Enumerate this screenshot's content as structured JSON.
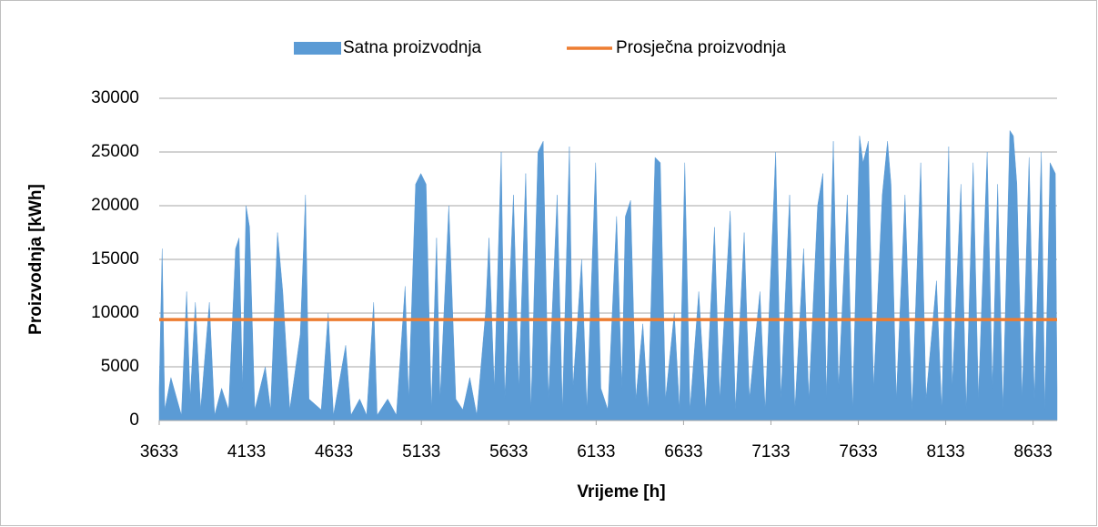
{
  "chart_data": {
    "type": "area",
    "xlabel": "Vrijeme [h]",
    "ylabel": "Proizvodnja [kWh]",
    "xlim": [
      3633,
      8770
    ],
    "ylim": [
      0,
      30000
    ],
    "xticks": [
      3633,
      4133,
      4633,
      5133,
      5633,
      6133,
      6633,
      7133,
      7633,
      8133,
      8633
    ],
    "yticks": [
      0,
      5000,
      10000,
      15000,
      20000,
      25000,
      30000
    ],
    "grid": true,
    "legend": "top",
    "series": [
      {
        "name": "Satna proizvodnja",
        "color": "#5b9bd5",
        "type": "area",
        "x": [
          3633,
          3650,
          3665,
          3700,
          3760,
          3790,
          3810,
          3840,
          3870,
          3920,
          3950,
          3990,
          4030,
          4070,
          4090,
          4110,
          4130,
          4150,
          4180,
          4240,
          4270,
          4310,
          4340,
          4380,
          4440,
          4470,
          4490,
          4560,
          4600,
          4630,
          4700,
          4730,
          4780,
          4820,
          4860,
          4880,
          4940,
          4990,
          5040,
          5060,
          5100,
          5130,
          5160,
          5190,
          5220,
          5240,
          5290,
          5330,
          5370,
          5410,
          5450,
          5500,
          5520,
          5550,
          5590,
          5610,
          5660,
          5690,
          5730,
          5760,
          5800,
          5830,
          5860,
          5910,
          5940,
          5980,
          6000,
          6050,
          6080,
          6130,
          6160,
          6200,
          6250,
          6280,
          6300,
          6330,
          6360,
          6400,
          6430,
          6470,
          6500,
          6530,
          6580,
          6610,
          6640,
          6670,
          6720,
          6760,
          6810,
          6840,
          6900,
          6930,
          6980,
          7010,
          7070,
          7100,
          7160,
          7190,
          7240,
          7270,
          7320,
          7350,
          7400,
          7430,
          7450,
          7490,
          7520,
          7570,
          7600,
          7640,
          7660,
          7690,
          7720,
          7770,
          7800,
          7820,
          7850,
          7900,
          7940,
          7990,
          8020,
          8080,
          8110,
          8150,
          8170,
          8220,
          8250,
          8290,
          8320,
          8370,
          8400,
          8430,
          8460,
          8500,
          8520,
          8540,
          8570,
          8610,
          8640,
          8680,
          8700,
          8730,
          8760,
          8770
        ],
        "values": [
          3000,
          16000,
          1000,
          4000,
          500,
          12000,
          2000,
          11000,
          1000,
          11000,
          500,
          3000,
          1000,
          16000,
          17000,
          3000,
          20000,
          18000,
          1000,
          5000,
          1000,
          17500,
          12000,
          1000,
          8000,
          21000,
          2000,
          1000,
          10000,
          500,
          7000,
          500,
          2000,
          500,
          11000,
          500,
          2000,
          500,
          12500,
          2000,
          22000,
          23000,
          22000,
          1000,
          17000,
          2000,
          20000,
          2000,
          1000,
          4000,
          500,
          10000,
          17000,
          3000,
          25000,
          2000,
          21000,
          3000,
          23000,
          1000,
          25000,
          26000,
          2000,
          21000,
          1000,
          25500,
          3000,
          15000,
          1000,
          24000,
          3000,
          1000,
          19000,
          3000,
          19000,
          20500,
          2000,
          9000,
          1000,
          24500,
          24000,
          2000,
          10000,
          1000,
          24000,
          1000,
          12000,
          1000,
          18000,
          2000,
          19500,
          1000,
          17500,
          2000,
          12000,
          1000,
          25000,
          2000,
          21000,
          1000,
          16000,
          2000,
          20000,
          23000,
          2000,
          26000,
          3000,
          21000,
          1000,
          26500,
          24000,
          26000,
          3000,
          21000,
          26000,
          22000,
          2000,
          21000,
          1000,
          24000,
          2000,
          13000,
          1000,
          25500,
          3000,
          22000,
          1000,
          24000,
          2000,
          25000,
          3000,
          22000,
          1000,
          27000,
          26500,
          22000,
          2000,
          24500,
          2000,
          25000,
          1000,
          24000,
          23000,
          3000
        ]
      },
      {
        "name": "Prosječna proizvodnja",
        "color": "#ed7d31",
        "type": "line",
        "x": [
          3633,
          8770
        ],
        "values": [
          9400,
          9400
        ]
      }
    ]
  }
}
